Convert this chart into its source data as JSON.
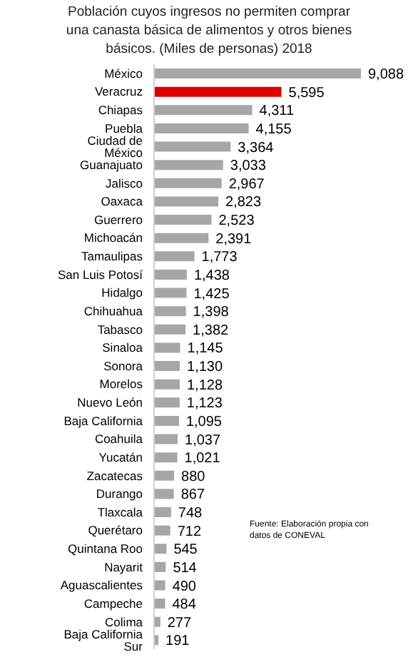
{
  "chart_data": {
    "type": "bar",
    "orientation": "horizontal",
    "title": "Población cuyos ingresos no permiten comprar una canasta básica de alimentos y otros bienes básicos. (Miles de personas) 2018",
    "categories": [
      "México",
      "Veracruz",
      "Chiapas",
      "Puebla",
      "Ciudad de México",
      "Guanajuato",
      "Jalisco",
      "Oaxaca",
      "Guerrero",
      "Michoacán",
      "Tamaulipas",
      "San Luis Potosí",
      "Hidalgo",
      "Chihuahua",
      "Tabasco",
      "Sinaloa",
      "Sonora",
      "Morelos",
      "Nuevo León",
      "Baja California",
      "Coahuila",
      "Yucatán",
      "Zacatecas",
      "Durango",
      "Tlaxcala",
      "Querétaro",
      "Quintana Roo",
      "Nayarit",
      "Aguascalientes",
      "Campeche",
      "Colima",
      "Baja California Sur"
    ],
    "values": [
      9088,
      5595,
      4311,
      4155,
      3364,
      3033,
      2967,
      2823,
      2523,
      2391,
      1773,
      1438,
      1425,
      1398,
      1382,
      1145,
      1130,
      1128,
      1123,
      1095,
      1037,
      1021,
      880,
      867,
      748,
      712,
      545,
      514,
      490,
      484,
      277,
      191
    ],
    "value_labels": [
      "9,088",
      "5,595",
      "4,311",
      "4,155",
      "3,364",
      "3,033",
      "2,967",
      "2,823",
      "2,523",
      "2,391",
      "1,773",
      "1,438",
      "1,425",
      "1,398",
      "1,382",
      "1,145",
      "1,130",
      "1,128",
      "1,123",
      "1,095",
      "1,037",
      "1,021",
      "880",
      "867",
      "748",
      "712",
      "545",
      "514",
      "490",
      "484",
      "277",
      "191"
    ],
    "colors": [
      "#a6a6a6",
      "#e00000",
      "#a6a6a6",
      "#a6a6a6",
      "#a6a6a6",
      "#a6a6a6",
      "#a6a6a6",
      "#a6a6a6",
      "#a6a6a6",
      "#a6a6a6",
      "#a6a6a6",
      "#a6a6a6",
      "#a6a6a6",
      "#a6a6a6",
      "#a6a6a6",
      "#a6a6a6",
      "#a6a6a6",
      "#a6a6a6",
      "#a6a6a6",
      "#a6a6a6",
      "#a6a6a6",
      "#a6a6a6",
      "#a6a6a6",
      "#a6a6a6",
      "#a6a6a6",
      "#a6a6a6",
      "#a6a6a6",
      "#a6a6a6",
      "#a6a6a6",
      "#a6a6a6",
      "#a6a6a6",
      "#a6a6a6"
    ],
    "annotations": [
      "Fuente: Elaboración propia con datos de CONEVAL"
    ],
    "grid": false,
    "legend": false
  }
}
